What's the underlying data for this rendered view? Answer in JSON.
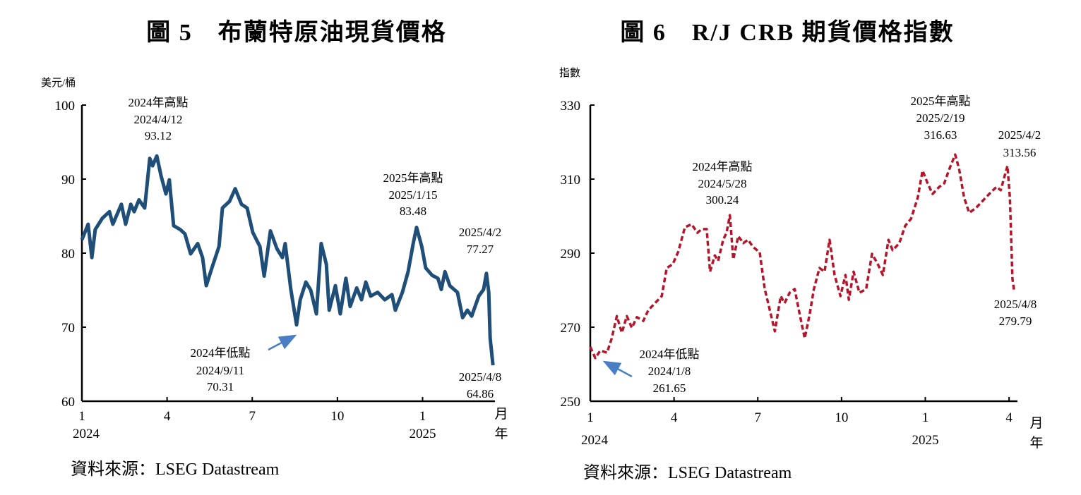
{
  "chart_data": [
    {
      "type": "line",
      "title": "圖 5　布蘭特原油現貨價格",
      "ylabel": "美元/桶",
      "xlabel_month": "月",
      "xlabel_year": "年",
      "source": "資料來源：LSEG Datastream",
      "ylim": [
        60,
        100
      ],
      "yticks": [
        100,
        90,
        80,
        70,
        60
      ],
      "xlim": [
        0,
        14.55
      ],
      "xticks": [
        {
          "x": 0,
          "label": "1"
        },
        {
          "x": 3,
          "label": "4"
        },
        {
          "x": 6,
          "label": "7"
        },
        {
          "x": 9,
          "label": "10"
        },
        {
          "x": 12,
          "label": "1"
        }
      ],
      "year_labels": [
        {
          "x": 0,
          "label": "2024"
        },
        {
          "x": 12,
          "label": "2025"
        }
      ],
      "x_units": "months since Jan 2024 (axis scale)",
      "grid": false,
      "color": "#1f4e79",
      "series": [
        {
          "name": "Brent spot",
          "points": [
            [
              0,
              81.8
            ],
            [
              0.22,
              83.9
            ],
            [
              0.35,
              79.4
            ],
            [
              0.47,
              83.2
            ],
            [
              0.72,
              84.7
            ],
            [
              0.97,
              85.6
            ],
            [
              1.09,
              83.9
            ],
            [
              1.39,
              86.6
            ],
            [
              1.54,
              83.9
            ],
            [
              1.72,
              86.6
            ],
            [
              1.84,
              85.6
            ],
            [
              2.01,
              87.2
            ],
            [
              2.21,
              86.1
            ],
            [
              2.39,
              92.8
            ],
            [
              2.49,
              91.8
            ],
            [
              2.64,
              93.12
            ],
            [
              2.79,
              90.4
            ],
            [
              2.96,
              88
            ],
            [
              3.08,
              89.9
            ],
            [
              3.23,
              83.7
            ],
            [
              3.46,
              83.2
            ],
            [
              3.63,
              82.6
            ],
            [
              3.83,
              79.9
            ],
            [
              4.08,
              81.3
            ],
            [
              4.25,
              79.4
            ],
            [
              4.38,
              75.6
            ],
            [
              4.58,
              78
            ],
            [
              4.83,
              80.9
            ],
            [
              4.95,
              86.1
            ],
            [
              5.2,
              87
            ],
            [
              5.4,
              88.7
            ],
            [
              5.62,
              86.6
            ],
            [
              5.82,
              86.1
            ],
            [
              6.02,
              82.8
            ],
            [
              6.27,
              80.9
            ],
            [
              6.42,
              76.9
            ],
            [
              6.64,
              83
            ],
            [
              6.87,
              80.6
            ],
            [
              7.06,
              79.4
            ],
            [
              7.16,
              81.3
            ],
            [
              7.36,
              75.1
            ],
            [
              7.56,
              70.31
            ],
            [
              7.69,
              73.7
            ],
            [
              7.89,
              76.1
            ],
            [
              8.06,
              75
            ],
            [
              8.26,
              71.8
            ],
            [
              8.43,
              81.3
            ],
            [
              8.61,
              78.5
            ],
            [
              8.71,
              72.3
            ],
            [
              8.93,
              75.6
            ],
            [
              9.1,
              71.8
            ],
            [
              9.3,
              76.6
            ],
            [
              9.45,
              72.8
            ],
            [
              9.68,
              75.3
            ],
            [
              9.85,
              73.7
            ],
            [
              10,
              76.1
            ],
            [
              10.17,
              74.2
            ],
            [
              10.42,
              74.7
            ],
            [
              10.67,
              73.7
            ],
            [
              10.92,
              74.4
            ],
            [
              11.04,
              72.3
            ],
            [
              11.29,
              74.7
            ],
            [
              11.49,
              77.5
            ],
            [
              11.67,
              81.3
            ],
            [
              11.79,
              83.48
            ],
            [
              11.97,
              80.9
            ],
            [
              12.11,
              78
            ],
            [
              12.34,
              77
            ],
            [
              12.54,
              76.6
            ],
            [
              12.66,
              75.1
            ],
            [
              12.79,
              77.5
            ],
            [
              12.96,
              75.6
            ],
            [
              13.11,
              75.1
            ],
            [
              13.23,
              74.7
            ],
            [
              13.41,
              71.3
            ],
            [
              13.58,
              72.3
            ],
            [
              13.73,
              71.5
            ],
            [
              13.98,
              74.2
            ],
            [
              14.15,
              75.1
            ],
            [
              14.25,
              77.27
            ],
            [
              14.33,
              74.7
            ],
            [
              14.38,
              68.5
            ],
            [
              14.48,
              64.86
            ]
          ]
        }
      ],
      "annotations": [
        {
          "id": "high2024",
          "lines": [
            "2024年高點",
            "2024/4/12",
            "93.12"
          ]
        },
        {
          "id": "high2025",
          "lines": [
            "2025年高點",
            "2025/1/15",
            "83.48"
          ]
        },
        {
          "id": "apr2",
          "lines": [
            "2025/4/2",
            "77.27"
          ]
        },
        {
          "id": "low2024",
          "lines": [
            "2024年低點",
            "2024/9/11",
            "70.31"
          ]
        },
        {
          "id": "apr8",
          "lines": [
            "2025/4/8",
            "64.86"
          ]
        }
      ]
    },
    {
      "type": "line",
      "title": "圖 6　R/J CRB 期貨價格指數",
      "ylabel": "指數",
      "xlabel_month": "月",
      "xlabel_year": "年",
      "source": "資料來源：LSEG Datastream",
      "ylim": [
        250,
        330
      ],
      "yticks": [
        330,
        310,
        290,
        270,
        250
      ],
      "xlim": [
        0,
        15.3
      ],
      "xticks": [
        {
          "x": 0,
          "label": "1"
        },
        {
          "x": 3,
          "label": "4"
        },
        {
          "x": 6,
          "label": "7"
        },
        {
          "x": 9,
          "label": "10"
        },
        {
          "x": 12,
          "label": "1"
        },
        {
          "x": 15,
          "label": "4"
        }
      ],
      "year_labels": [
        {
          "x": 0,
          "label": "2024"
        },
        {
          "x": 12,
          "label": "2025"
        }
      ],
      "x_units": "months since Jan 2024",
      "grid": false,
      "color": "#b5152b",
      "series": [
        {
          "name": "R/J CRB index",
          "points": [
            [
              0,
              264.7
            ],
            [
              0.18,
              261.65
            ],
            [
              0.36,
              263.7
            ],
            [
              0.6,
              263.1
            ],
            [
              0.77,
              267
            ],
            [
              0.95,
              273
            ],
            [
              1.13,
              268.5
            ],
            [
              1.31,
              273
            ],
            [
              1.49,
              269.8
            ],
            [
              1.67,
              272.7
            ],
            [
              1.9,
              271.7
            ],
            [
              2.08,
              274.6
            ],
            [
              2.32,
              276.5
            ],
            [
              2.56,
              278.4
            ],
            [
              2.74,
              286
            ],
            [
              2.95,
              287
            ],
            [
              3.15,
              290.4
            ],
            [
              3.39,
              297
            ],
            [
              3.63,
              297.8
            ],
            [
              3.84,
              295.5
            ],
            [
              3.99,
              296.5
            ],
            [
              4.17,
              296.5
            ],
            [
              4.29,
              285
            ],
            [
              4.46,
              289.4
            ],
            [
              4.58,
              287.9
            ],
            [
              4.76,
              293.6
            ],
            [
              4.88,
              295.5
            ],
            [
              5.0,
              300.24
            ],
            [
              5.12,
              288.3
            ],
            [
              5.3,
              294.6
            ],
            [
              5.48,
              292.7
            ],
            [
              5.65,
              293.6
            ],
            [
              5.83,
              291.7
            ],
            [
              6.07,
              290.2
            ],
            [
              6.25,
              280.3
            ],
            [
              6.43,
              274.6
            ],
            [
              6.61,
              268.9
            ],
            [
              6.82,
              278.4
            ],
            [
              6.96,
              276.5
            ],
            [
              7.14,
              279.3
            ],
            [
              7.32,
              280.3
            ],
            [
              7.47,
              274.6
            ],
            [
              7.68,
              267
            ],
            [
              7.86,
              273.6
            ],
            [
              8.01,
              280.3
            ],
            [
              8.21,
              286
            ],
            [
              8.39,
              285
            ],
            [
              8.57,
              293.6
            ],
            [
              8.75,
              284.1
            ],
            [
              8.96,
              278.4
            ],
            [
              9.14,
              284.1
            ],
            [
              9.26,
              277.4
            ],
            [
              9.43,
              285
            ],
            [
              9.64,
              279.3
            ],
            [
              9.88,
              280.3
            ],
            [
              10.09,
              289.8
            ],
            [
              10.3,
              287
            ],
            [
              10.48,
              284.1
            ],
            [
              10.68,
              293.6
            ],
            [
              10.83,
              290.8
            ],
            [
              11.07,
              292.7
            ],
            [
              11.28,
              297.4
            ],
            [
              11.49,
              299.3
            ],
            [
              11.73,
              305
            ],
            [
              11.9,
              312.3
            ],
            [
              12.08,
              308.9
            ],
            [
              12.26,
              306
            ],
            [
              12.5,
              307.9
            ],
            [
              12.68,
              308.9
            ],
            [
              12.86,
              312.7
            ],
            [
              13.07,
              316.63
            ],
            [
              13.21,
              312.7
            ],
            [
              13.39,
              305
            ],
            [
              13.57,
              300.9
            ],
            [
              13.81,
              302.2
            ],
            [
              14.05,
              304.1
            ],
            [
              14.29,
              306
            ],
            [
              14.55,
              307.9
            ],
            [
              14.7,
              307
            ],
            [
              14.94,
              313.56
            ],
            [
              15.03,
              305
            ],
            [
              15.12,
              283.1
            ],
            [
              15.18,
              279.79
            ]
          ]
        }
      ],
      "annotations": [
        {
          "id": "high2024",
          "lines": [
            "2024年高點",
            "2024/5/28",
            "300.24"
          ]
        },
        {
          "id": "high2025",
          "lines": [
            "2025年高點",
            "2025/2/19",
            "316.63"
          ]
        },
        {
          "id": "apr2",
          "lines": [
            "2025/4/2",
            "313.56"
          ]
        },
        {
          "id": "low2024",
          "lines": [
            "2024年低點",
            "2024/1/8",
            "261.65"
          ]
        },
        {
          "id": "apr8",
          "lines": [
            "2025/4/8",
            "279.79"
          ]
        }
      ]
    }
  ]
}
